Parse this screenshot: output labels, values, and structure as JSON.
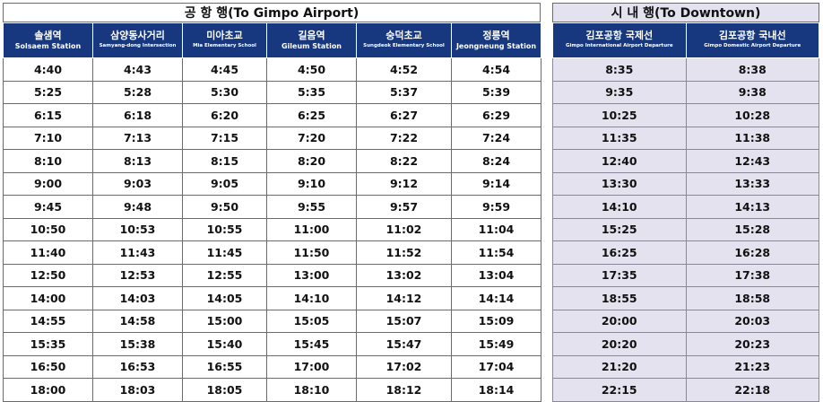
{
  "airport": {
    "title": "공 항 행(To Gimpo Airport)",
    "headers": [
      {
        "ko": "솔샘역",
        "en": "Solsaem Station"
      },
      {
        "ko": "삼양동사거리",
        "en": "Samyang-dong Intersection"
      },
      {
        "ko": "미아초교",
        "en": "Mia Elementary School"
      },
      {
        "ko": "길음역",
        "en": "Gileum Station"
      },
      {
        "ko": "숭덕초교",
        "en": "Sungdeok Elementary School"
      },
      {
        "ko": "정릉역",
        "en": "Jeongneung Station"
      }
    ],
    "rows": [
      [
        "4:40",
        "4:43",
        "4:45",
        "4:50",
        "4:52",
        "4:54"
      ],
      [
        "5:25",
        "5:28",
        "5:30",
        "5:35",
        "5:37",
        "5:39"
      ],
      [
        "6:15",
        "6:18",
        "6:20",
        "6:25",
        "6:27",
        "6:29"
      ],
      [
        "7:10",
        "7:13",
        "7:15",
        "7:20",
        "7:22",
        "7:24"
      ],
      [
        "8:10",
        "8:13",
        "8:15",
        "8:20",
        "8:22",
        "8:24"
      ],
      [
        "9:00",
        "9:03",
        "9:05",
        "9:10",
        "9:12",
        "9:14"
      ],
      [
        "9:45",
        "9:48",
        "9:50",
        "9:55",
        "9:57",
        "9:59"
      ],
      [
        "10:50",
        "10:53",
        "10:55",
        "11:00",
        "11:02",
        "11:04"
      ],
      [
        "11:40",
        "11:43",
        "11:45",
        "11:50",
        "11:52",
        "11:54"
      ],
      [
        "12:50",
        "12:53",
        "12:55",
        "13:00",
        "13:02",
        "13:04"
      ],
      [
        "14:00",
        "14:03",
        "14:05",
        "14:10",
        "14:12",
        "14:14"
      ],
      [
        "14:55",
        "14:58",
        "15:00",
        "15:05",
        "15:07",
        "15:09"
      ],
      [
        "15:35",
        "15:38",
        "15:40",
        "15:45",
        "15:47",
        "15:49"
      ],
      [
        "16:50",
        "16:53",
        "16:55",
        "17:00",
        "17:02",
        "17:04"
      ],
      [
        "18:00",
        "18:03",
        "18:05",
        "18:10",
        "18:12",
        "18:14"
      ]
    ]
  },
  "downtown": {
    "title": "시 내 행(To Downtown)",
    "headers": [
      {
        "ko": "김포공항 국제선",
        "en": "Gimpo International Airport Departure"
      },
      {
        "ko": "김포공항 국내선",
        "en": "Gimpo Domestic Airport Departure"
      }
    ],
    "rows": [
      [
        "8:35",
        "8:38"
      ],
      [
        "9:35",
        "9:38"
      ],
      [
        "10:25",
        "10:28"
      ],
      [
        "11:35",
        "11:38"
      ],
      [
        "12:40",
        "12:43"
      ],
      [
        "13:30",
        "13:33"
      ],
      [
        "14:10",
        "14:13"
      ],
      [
        "15:25",
        "15:28"
      ],
      [
        "16:25",
        "16:28"
      ],
      [
        "17:35",
        "17:38"
      ],
      [
        "18:55",
        "18:58"
      ],
      [
        "20:00",
        "20:03"
      ],
      [
        "20:20",
        "20:23"
      ],
      [
        "21:20",
        "21:23"
      ],
      [
        "22:15",
        "22:18"
      ]
    ]
  }
}
